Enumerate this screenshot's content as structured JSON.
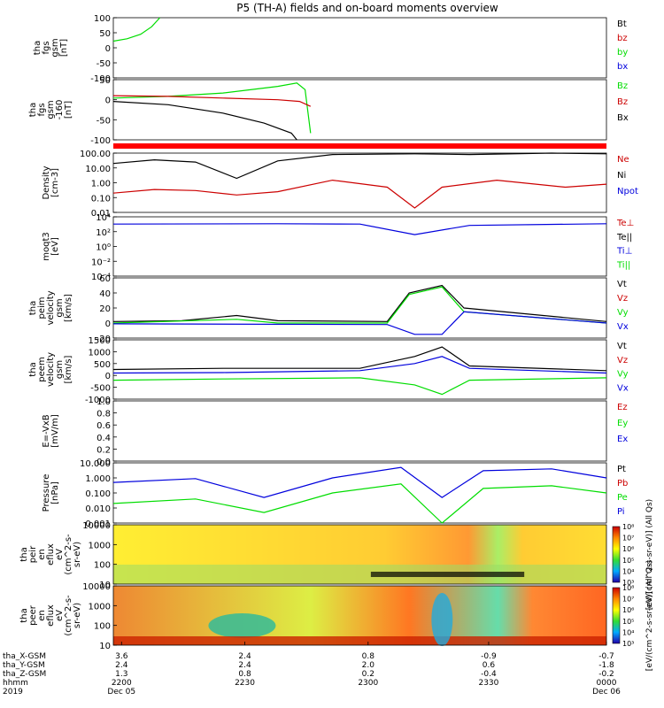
{
  "title": "P5 (TH-A) fields and on-board moments overview",
  "colors": {
    "black": "#000000",
    "red": "#cc0000",
    "green": "#00dd00",
    "blue": "#0000dd",
    "redband": "#ff0000"
  },
  "chart_data": [
    {
      "type": "line",
      "ylabel": [
        "tha",
        "fgs",
        "gsm",
        "[nT]"
      ],
      "ylim": [
        -100,
        100
      ],
      "ticks": [
        "100",
        "50",
        "0",
        "-50",
        "-100"
      ],
      "legend": [
        {
          "label": "Bt",
          "color": "#000000"
        },
        {
          "label": "bz",
          "color": "#cc0000"
        },
        {
          "label": "by",
          "color": "#00dd00"
        },
        {
          "label": "bx",
          "color": "#0000dd"
        }
      ],
      "series": [
        {
          "name": "by",
          "color": "#00dd00",
          "points": [
            [
              0,
              22
            ],
            [
              5,
              30
            ],
            [
              10,
              45
            ],
            [
              14,
              70
            ],
            [
              17,
              100
            ]
          ]
        }
      ]
    },
    {
      "type": "line",
      "ylabel": [
        "tha",
        "fgs",
        "gsm",
        "-160",
        "[nT]"
      ],
      "ylim": [
        -120,
        60
      ],
      "ticks": [
        "50",
        "0",
        "-50",
        "-100"
      ],
      "legend": [
        {
          "label": "Bz",
          "color": "#00dd00"
        },
        {
          "label": "Bz",
          "color": "#cc0000"
        },
        {
          "label": "Bx",
          "color": "#000000"
        }
      ],
      "series": [
        {
          "name": "Bz green",
          "color": "#00dd00",
          "points": [
            [
              0,
              5
            ],
            [
              20,
              10
            ],
            [
              40,
              20
            ],
            [
              60,
              40
            ],
            [
              67,
              50
            ],
            [
              70,
              30
            ],
            [
              72,
              -100
            ]
          ]
        },
        {
          "name": "Bz red",
          "color": "#cc0000",
          "points": [
            [
              0,
              12
            ],
            [
              20,
              10
            ],
            [
              40,
              5
            ],
            [
              60,
              0
            ],
            [
              68,
              -5
            ],
            [
              72,
              -20
            ]
          ]
        },
        {
          "name": "Bx",
          "color": "#000000",
          "points": [
            [
              0,
              -5
            ],
            [
              20,
              -15
            ],
            [
              40,
              -40
            ],
            [
              55,
              -70
            ],
            [
              65,
              -100
            ],
            [
              67,
              -120
            ]
          ]
        }
      ]
    },
    {
      "type": "line",
      "ylabel": [
        "Density",
        "[cm-3]"
      ],
      "ylim": [
        0.01,
        100
      ],
      "log": true,
      "ticks": [
        "100.00",
        "10.00",
        "1.00",
        "0.10",
        "0.01"
      ],
      "legend": [
        {
          "label": "Ne",
          "color": "#cc0000"
        },
        {
          "label": "Ni",
          "color": "#000000"
        },
        {
          "label": "Npot",
          "color": "#0000dd"
        }
      ],
      "series": [
        {
          "name": "Ni",
          "color": "#000000",
          "points": [
            [
              0,
              20
            ],
            [
              15,
              35
            ],
            [
              30,
              25
            ],
            [
              45,
              2
            ],
            [
              60,
              30
            ],
            [
              80,
              80
            ],
            [
              110,
              90
            ],
            [
              130,
              80
            ],
            [
              160,
              100
            ],
            [
              180,
              90
            ]
          ]
        },
        {
          "name": "Ne",
          "color": "#cc0000",
          "points": [
            [
              0,
              0.2
            ],
            [
              15,
              0.35
            ],
            [
              30,
              0.3
            ],
            [
              45,
              0.15
            ],
            [
              60,
              0.25
            ],
            [
              80,
              1.5
            ],
            [
              100,
              0.5
            ],
            [
              110,
              0.02
            ],
            [
              120,
              0.5
            ],
            [
              140,
              1.5
            ],
            [
              165,
              0.5
            ],
            [
              180,
              0.8
            ]
          ]
        }
      ]
    },
    {
      "type": "line",
      "ylabel": [
        "moqt3",
        "[eV]"
      ],
      "ylim": [
        1e-05,
        10000
      ],
      "log": true,
      "ticks": [
        "10⁴",
        "10²",
        "10⁰",
        "10⁻²",
        "10⁻⁴"
      ],
      "legend": [
        {
          "label": "Te⊥",
          "color": "#cc0000"
        },
        {
          "label": "Te||",
          "color": "#000000"
        },
        {
          "label": "Ti⊥",
          "color": "#0000dd"
        },
        {
          "label": "Ti||",
          "color": "#00dd00"
        }
      ],
      "series": [
        {
          "name": "Ti",
          "color": "#0000dd",
          "points": [
            [
              0,
              800
            ],
            [
              60,
              900
            ],
            [
              90,
              800
            ],
            [
              110,
              20
            ],
            [
              130,
              500
            ],
            [
              180,
              900
            ]
          ]
        }
      ]
    },
    {
      "type": "line",
      "ylabel": [
        "tha",
        "peim",
        "velocity",
        "gsm",
        "[km/s]"
      ],
      "ylim": [
        -20,
        60
      ],
      "ticks": [
        "60",
        "40",
        "20",
        "0",
        "-20"
      ],
      "legend": [
        {
          "label": "Vt",
          "color": "#000000"
        },
        {
          "label": "Vz",
          "color": "#cc0000"
        },
        {
          "label": "Vy",
          "color": "#00dd00"
        },
        {
          "label": "Vx",
          "color": "#0000dd"
        }
      ],
      "series": [
        {
          "name": "Vt",
          "color": "#000000",
          "points": [
            [
              0,
              2
            ],
            [
              25,
              3
            ],
            [
              45,
              10
            ],
            [
              60,
              3
            ],
            [
              100,
              2
            ],
            [
              108,
              40
            ],
            [
              120,
              50
            ],
            [
              128,
              20
            ],
            [
              180,
              2
            ]
          ]
        },
        {
          "name": "Vy",
          "color": "#00dd00",
          "points": [
            [
              0,
              0
            ],
            [
              45,
              5
            ],
            [
              60,
              0
            ],
            [
              100,
              0
            ],
            [
              108,
              38
            ],
            [
              120,
              48
            ],
            [
              128,
              15
            ],
            [
              180,
              0
            ]
          ]
        },
        {
          "name": "Vx",
          "color": "#0000dd",
          "points": [
            [
              0,
              -1
            ],
            [
              100,
              -2
            ],
            [
              110,
              -15
            ],
            [
              120,
              -15
            ],
            [
              128,
              15
            ],
            [
              180,
              0
            ]
          ]
        }
      ]
    },
    {
      "type": "line",
      "ylabel": [
        "tha",
        "peem",
        "velocity",
        "gsm",
        "[km/s]"
      ],
      "ylim": [
        -1000,
        1500
      ],
      "ticks": [
        "1500",
        "1000",
        "500",
        "0",
        "-500",
        "-1000"
      ],
      "legend": [
        {
          "label": "Vt",
          "color": "#000000"
        },
        {
          "label": "Vz",
          "color": "#cc0000"
        },
        {
          "label": "Vy",
          "color": "#00dd00"
        },
        {
          "label": "Vx",
          "color": "#0000dd"
        }
      ],
      "series": [
        {
          "name": "Vt",
          "color": "#000000",
          "points": [
            [
              0,
              250
            ],
            [
              40,
              300
            ],
            [
              90,
              300
            ],
            [
              110,
              800
            ],
            [
              120,
              1200
            ],
            [
              130,
              400
            ],
            [
              180,
              200
            ]
          ]
        },
        {
          "name": "Vx",
          "color": "#0000dd",
          "points": [
            [
              0,
              100
            ],
            [
              40,
              120
            ],
            [
              90,
              200
            ],
            [
              110,
              500
            ],
            [
              120,
              800
            ],
            [
              130,
              300
            ],
            [
              180,
              100
            ]
          ]
        },
        {
          "name": "Vy",
          "color": "#00dd00",
          "points": [
            [
              0,
              -200
            ],
            [
              40,
              -150
            ],
            [
              90,
              -100
            ],
            [
              110,
              -400
            ],
            [
              120,
              -800
            ],
            [
              130,
              -200
            ],
            [
              180,
              -100
            ]
          ]
        }
      ]
    },
    {
      "type": "line",
      "ylabel": [
        "E=-VxB",
        "[mV/m]"
      ],
      "ylim": [
        0,
        1
      ],
      "ticks": [
        "1.0",
        "0.8",
        "0.6",
        "0.4",
        "0.2",
        "0.0"
      ],
      "legend": [
        {
          "label": "Ez",
          "color": "#cc0000"
        },
        {
          "label": "Ey",
          "color": "#00dd00"
        },
        {
          "label": "Ex",
          "color": "#0000dd"
        }
      ],
      "series": []
    },
    {
      "type": "line",
      "ylabel": [
        "Pressure",
        "[nPa]"
      ],
      "ylim": [
        0.001,
        10
      ],
      "log": true,
      "ticks": [
        "10.000",
        "1.000",
        "0.100",
        "0.010",
        "0.001"
      ],
      "legend": [
        {
          "label": "Pt",
          "color": "#000000"
        },
        {
          "label": "Pb",
          "color": "#cc0000"
        },
        {
          "label": "Pe",
          "color": "#00dd00"
        },
        {
          "label": "Pi",
          "color": "#0000dd"
        }
      ],
      "series": [
        {
          "name": "Pi",
          "color": "#0000dd",
          "points": [
            [
              0,
              0.5
            ],
            [
              30,
              0.9
            ],
            [
              55,
              0.05
            ],
            [
              80,
              1
            ],
            [
              105,
              5
            ],
            [
              120,
              0.05
            ],
            [
              135,
              3
            ],
            [
              160,
              4
            ],
            [
              180,
              1
            ]
          ]
        },
        {
          "name": "Pe",
          "color": "#00dd00",
          "points": [
            [
              0,
              0.02
            ],
            [
              30,
              0.04
            ],
            [
              55,
              0.005
            ],
            [
              80,
              0.1
            ],
            [
              105,
              0.4
            ],
            [
              120,
              0.001
            ],
            [
              135,
              0.2
            ],
            [
              160,
              0.3
            ],
            [
              180,
              0.1
            ]
          ]
        }
      ]
    },
    {
      "type": "heatmap",
      "ylabel": [
        "tha",
        "peir",
        "en",
        "eflux",
        "eV",
        "(cm^2-s-",
        "sr-eV)"
      ],
      "ylim": [
        5,
        30000
      ],
      "ticks": [
        "10000",
        "1000",
        "100",
        "10"
      ],
      "colorbar": {
        "label": "[eV/(cm^2-s-sr-eV)] (All Qs)",
        "ticks": [
          "10⁸",
          "10⁷",
          "10⁶",
          "10⁵",
          "10⁴",
          "10³"
        ]
      }
    },
    {
      "type": "heatmap",
      "ylabel": [
        "tha",
        "peer",
        "en",
        "eflux",
        "eV",
        "(cm^2-s-",
        "sr-eV)"
      ],
      "ylim": [
        5,
        30000
      ],
      "ticks": [
        "10000",
        "1000",
        "100",
        "10"
      ],
      "colorbar": {
        "label": "[eV/(cm^2-s-sr-eV)] (All Qs)",
        "ticks": [
          "10⁸",
          "10⁷",
          "10⁶",
          "10⁵",
          "10⁴",
          "10³"
        ]
      }
    }
  ],
  "xaxis": {
    "rows": [
      {
        "label": "tha_X-GSM",
        "values": [
          "3.6",
          "2.4",
          "0.8",
          "-0.9",
          "-0.7"
        ]
      },
      {
        "label": "tha_Y-GSM",
        "values": [
          "2.4",
          "2.4",
          "2.0",
          "0.6",
          "-1.8"
        ]
      },
      {
        "label": "tha_Z-GSM",
        "values": [
          "1.3",
          "0.8",
          "0.2",
          "-0.4",
          "-0.2"
        ]
      },
      {
        "label": "hhmm",
        "values": [
          "2200",
          "2230",
          "2300",
          "2330",
          "0000"
        ]
      },
      {
        "label": "2019",
        "values": [
          "Dec 05",
          "",
          "",
          "",
          "Dec 06"
        ]
      }
    ]
  }
}
